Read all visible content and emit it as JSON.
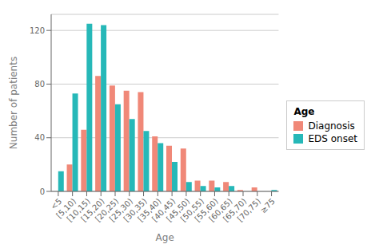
{
  "chart_data": {
    "type": "bar",
    "xlabel": "Age",
    "ylabel": "Number of patients",
    "legend_title": "Age",
    "categories": [
      "<5",
      "[5,10)",
      "[10,15)",
      "[15,20)",
      "[20,25)",
      "[25,30)",
      "[30,35)",
      "[35,40)",
      "[40,45)",
      "[45,50)",
      "[50,55)",
      "[55,60)",
      "[60,65)",
      "[65,70)",
      "[70,75)",
      "≥75"
    ],
    "series": [
      {
        "name": "Diagnosis",
        "color": "#F08878",
        "values": [
          0,
          20,
          46,
          86,
          79,
          75,
          74,
          41,
          34,
          32,
          8,
          8,
          7,
          1,
          3,
          0
        ]
      },
      {
        "name": "EDS onset",
        "color": "#26B8B8",
        "values": [
          15,
          73,
          125,
          124,
          65,
          54,
          45,
          36,
          22,
          7,
          4,
          3,
          4,
          0,
          0,
          1
        ]
      }
    ],
    "ylim": [
      0,
      132
    ],
    "yticks": [
      0,
      40,
      80,
      120
    ],
    "grid": true,
    "legend": "right"
  }
}
